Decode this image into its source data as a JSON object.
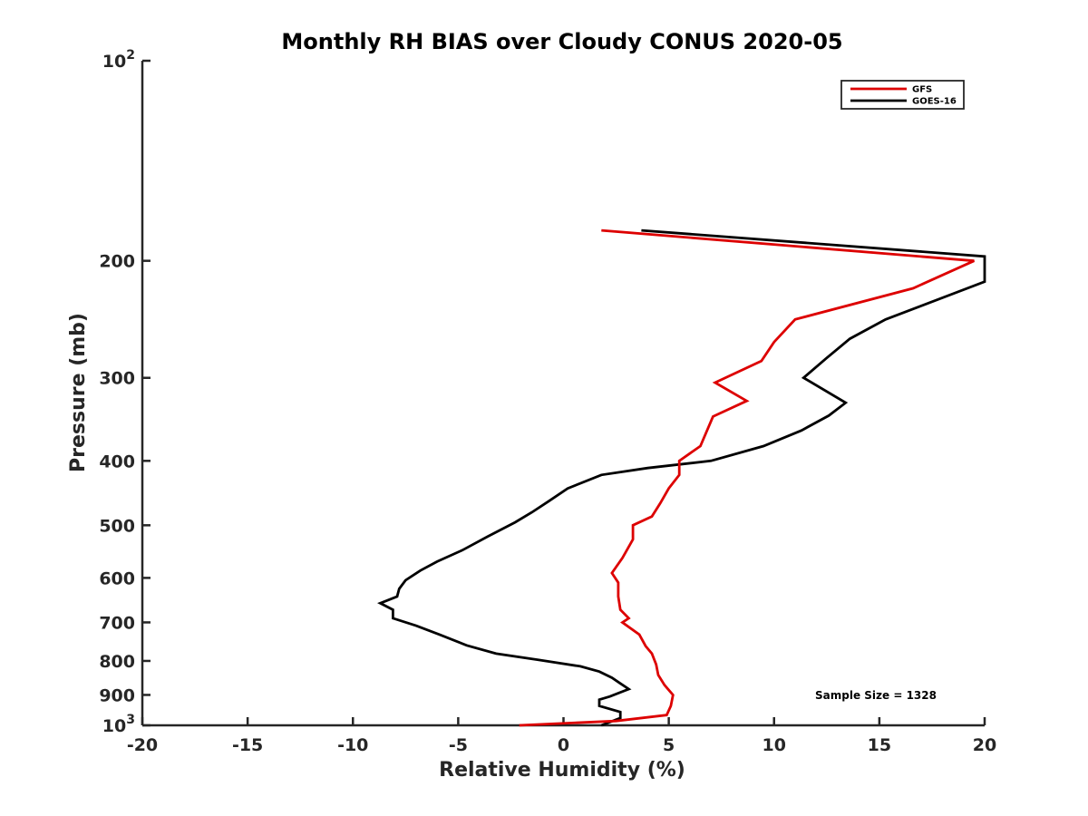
{
  "chart_data": {
    "type": "line",
    "title": "Monthly RH BIAS over Cloudy CONUS  2020-05",
    "xlabel": "Relative Humidity (%)",
    "ylabel": "Pressure (mb)",
    "xlim": [
      -20,
      20
    ],
    "ylim": [
      100,
      1000
    ],
    "y_scale": "log",
    "y_reversed": true,
    "grid": false,
    "legend_position": "top-right",
    "x_ticks": [
      -20,
      -15,
      -10,
      -5,
      0,
      5,
      10,
      15,
      20
    ],
    "x_tick_labels": [
      "-20",
      "-15",
      "-10",
      "-5",
      "0",
      "5",
      "10",
      "15",
      "20"
    ],
    "y_ticks": [
      {
        "value": 100,
        "base": "10",
        "exp": "2"
      },
      {
        "value": 200,
        "label": "200"
      },
      {
        "value": 300,
        "label": "300"
      },
      {
        "value": 400,
        "label": "400"
      },
      {
        "value": 500,
        "label": "500"
      },
      {
        "value": 600,
        "label": "600"
      },
      {
        "value": 700,
        "label": "700"
      },
      {
        "value": 800,
        "label": "800"
      },
      {
        "value": 900,
        "label": "900"
      },
      {
        "value": 1000,
        "base": "10",
        "exp": "3"
      }
    ],
    "annotation": "Sample Size = 1328",
    "series": [
      {
        "name": "GFS",
        "color": "#dd0000",
        "points": [
          {
            "x": 1.8,
            "y": 180
          },
          {
            "x": 19.5,
            "y": 200
          },
          {
            "x": 16.6,
            "y": 220
          },
          {
            "x": 11.0,
            "y": 245
          },
          {
            "x": 10.0,
            "y": 265
          },
          {
            "x": 9.4,
            "y": 283
          },
          {
            "x": 7.2,
            "y": 305
          },
          {
            "x": 8.7,
            "y": 325
          },
          {
            "x": 7.1,
            "y": 343
          },
          {
            "x": 6.5,
            "y": 380
          },
          {
            "x": 5.5,
            "y": 400
          },
          {
            "x": 5.5,
            "y": 420
          },
          {
            "x": 5.0,
            "y": 440
          },
          {
            "x": 4.6,
            "y": 463
          },
          {
            "x": 4.2,
            "y": 485
          },
          {
            "x": 3.3,
            "y": 500
          },
          {
            "x": 3.3,
            "y": 525
          },
          {
            "x": 2.8,
            "y": 560
          },
          {
            "x": 2.3,
            "y": 590
          },
          {
            "x": 2.6,
            "y": 610
          },
          {
            "x": 2.6,
            "y": 640
          },
          {
            "x": 2.7,
            "y": 670
          },
          {
            "x": 3.1,
            "y": 690
          },
          {
            "x": 2.8,
            "y": 700
          },
          {
            "x": 3.6,
            "y": 730
          },
          {
            "x": 3.9,
            "y": 760
          },
          {
            "x": 4.2,
            "y": 780
          },
          {
            "x": 4.4,
            "y": 810
          },
          {
            "x": 4.5,
            "y": 840
          },
          {
            "x": 4.8,
            "y": 870
          },
          {
            "x": 5.2,
            "y": 900
          },
          {
            "x": 5.1,
            "y": 935
          },
          {
            "x": 4.9,
            "y": 965
          },
          {
            "x": 2.5,
            "y": 985
          },
          {
            "x": -2.1,
            "y": 1000
          }
        ]
      },
      {
        "name": "GOES-16",
        "color": "#000000",
        "points": [
          {
            "x": 3.7,
            "y": 180
          },
          {
            "x": 20.0,
            "y": 197
          },
          {
            "x": 20.0,
            "y": 215
          },
          {
            "x": 15.3,
            "y": 245
          },
          {
            "x": 13.6,
            "y": 262
          },
          {
            "x": 12.5,
            "y": 280
          },
          {
            "x": 11.4,
            "y": 300
          },
          {
            "x": 13.4,
            "y": 327
          },
          {
            "x": 12.6,
            "y": 342
          },
          {
            "x": 11.3,
            "y": 360
          },
          {
            "x": 9.5,
            "y": 380
          },
          {
            "x": 7.0,
            "y": 400
          },
          {
            "x": 4.0,
            "y": 410
          },
          {
            "x": 1.8,
            "y": 420
          },
          {
            "x": 0.2,
            "y": 440
          },
          {
            "x": -0.7,
            "y": 460
          },
          {
            "x": -1.5,
            "y": 478
          },
          {
            "x": -2.3,
            "y": 495
          },
          {
            "x": -3.6,
            "y": 520
          },
          {
            "x": -4.8,
            "y": 545
          },
          {
            "x": -6.0,
            "y": 567
          },
          {
            "x": -6.8,
            "y": 585
          },
          {
            "x": -7.5,
            "y": 605
          },
          {
            "x": -7.8,
            "y": 623
          },
          {
            "x": -7.9,
            "y": 640
          },
          {
            "x": -8.7,
            "y": 655
          },
          {
            "x": -8.1,
            "y": 670
          },
          {
            "x": -8.1,
            "y": 690
          },
          {
            "x": -7.0,
            "y": 708
          },
          {
            "x": -5.9,
            "y": 730
          },
          {
            "x": -4.6,
            "y": 758
          },
          {
            "x": -3.2,
            "y": 780
          },
          {
            "x": -1.2,
            "y": 797
          },
          {
            "x": 0.8,
            "y": 815
          },
          {
            "x": 1.7,
            "y": 830
          },
          {
            "x": 2.3,
            "y": 848
          },
          {
            "x": 2.7,
            "y": 865
          },
          {
            "x": 3.1,
            "y": 882
          },
          {
            "x": 2.2,
            "y": 905
          },
          {
            "x": 1.7,
            "y": 915
          },
          {
            "x": 1.7,
            "y": 935
          },
          {
            "x": 2.7,
            "y": 955
          },
          {
            "x": 2.7,
            "y": 975
          },
          {
            "x": 1.8,
            "y": 1000
          }
        ]
      }
    ]
  }
}
